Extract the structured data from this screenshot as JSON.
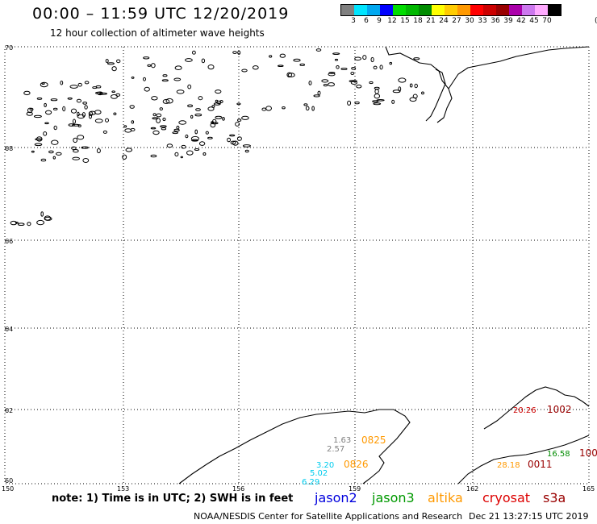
{
  "header": {
    "title": "00:00 – 11:59 UTC 12/20/2019",
    "subtitle": "12 hour collection of altimeter wave heights"
  },
  "legend": {
    "colors": [
      "#808080",
      "#00e5ff",
      "#00a8f0",
      "#0000ff",
      "#00dd00",
      "#00b800",
      "#008c00",
      "#ffff00",
      "#ffcc00",
      "#ff9900",
      "#ff0000",
      "#cc0000",
      "#990000",
      "#aa00aa",
      "#cc77ee",
      "#ffaaff",
      "#000000"
    ],
    "labels": [
      "3",
      "6",
      "9",
      "12",
      "15",
      "18",
      "21",
      "24",
      "27",
      "30",
      "33",
      "36",
      "39",
      "42",
      "45",
      "70"
    ],
    "unit": "(ft)"
  },
  "axes": {
    "lat_labels": [
      "70",
      "68",
      "66",
      "64",
      "62",
      "60"
    ],
    "lon_labels": [
      "150",
      "153",
      "156",
      "159",
      "162",
      "165"
    ]
  },
  "observations": [
    {
      "text": "1.63",
      "color": "#808080"
    },
    {
      "text": "2.57",
      "color": "#808080"
    },
    {
      "text": "0825",
      "color": "#ff9900"
    },
    {
      "text": "3.20",
      "color": "#00ccee"
    },
    {
      "text": "5.02",
      "color": "#00ccee"
    },
    {
      "text": "6.29",
      "color": "#00ccee"
    },
    {
      "text": "0826",
      "color": "#ff9900"
    },
    {
      "text": "20.26",
      "color": "#cc0000"
    },
    {
      "text": "1002",
      "color": "#990000"
    },
    {
      "text": "16.58",
      "color": "#008c00"
    },
    {
      "text": "100",
      "color": "#990000"
    },
    {
      "text": "28.18",
      "color": "#ff9900"
    },
    {
      "text": "0011",
      "color": "#990000"
    }
  ],
  "footer": {
    "note": "note:  1) Time is in UTC;  2) SWH is in feet",
    "satellites": [
      {
        "name": "jason2",
        "color": "#0000dd"
      },
      {
        "name": "jason3",
        "color": "#009900"
      },
      {
        "name": "altika",
        "color": "#ff9900"
      },
      {
        "name": "cryosat",
        "color": "#dd0000"
      },
      {
        "name": "s3a",
        "color": "#990000"
      }
    ],
    "credit": "NOAA/NESDIS Center for Satellite Applications and Research",
    "timestamp": "Dec 21 13:27:15 UTC 2019"
  }
}
